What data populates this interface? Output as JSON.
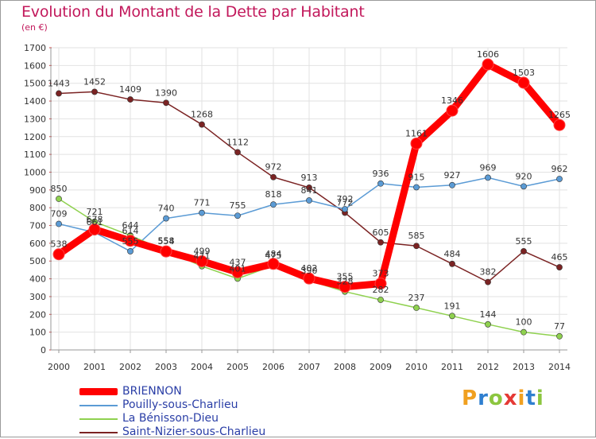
{
  "title": "Evolution du Montant de la Dette par Habitant",
  "subtitle": "(en €)",
  "brand": {
    "text": "Proxiti",
    "letter_colors": [
      "#f0a020",
      "#2e7fd0",
      "#8cc63f",
      "#e53935",
      "#f0a020",
      "#2e7fd0",
      "#8cc63f"
    ]
  },
  "chart_data": {
    "type": "line",
    "x": [
      "2000",
      "2001",
      "2002",
      "2003",
      "2004",
      "2005",
      "2006",
      "2007",
      "2008",
      "2009",
      "2010",
      "2011",
      "2012",
      "2013",
      "2014"
    ],
    "ylim": [
      0,
      1700
    ],
    "yticks": [
      0,
      100,
      200,
      300,
      400,
      500,
      600,
      700,
      800,
      900,
      1000,
      1100,
      1200,
      1300,
      1400,
      1500,
      1600,
      1700
    ],
    "grid": true,
    "legend_position": "bottom-left",
    "series": [
      {
        "name": "Saint-Nizier-sous-Charlieu",
        "color": "#7b2323",
        "values": [
          1443,
          1452,
          1409,
          1390,
          1268,
          1112,
          972,
          913,
          772,
          605,
          585,
          484,
          382,
          555,
          465
        ]
      },
      {
        "name": "Pouilly-sous-Charlieu",
        "color": "#5b9bd5",
        "values": [
          709,
          661,
          555,
          740,
          771,
          755,
          818,
          841,
          792,
          936,
          915,
          927,
          969,
          920,
          962
        ]
      },
      {
        "name": "La Bénisson-Dieu",
        "color": "#8fd14f",
        "values": [
          850,
          721,
          644,
          558,
          471,
          401,
          475,
          390,
          328,
          282,
          237,
          191,
          144,
          100,
          77
        ]
      },
      {
        "name": "BRIENNON",
        "color": "#ff0000",
        "values": [
          538,
          678,
          614,
          554,
          499,
          437,
          484,
          402,
          355,
          373,
          1161,
          1346,
          1606,
          1503,
          1265
        ]
      }
    ]
  },
  "legend": [
    {
      "label": "BRIENNON",
      "color": "#ff0000",
      "thickness": 9
    },
    {
      "label": "Pouilly-sous-Charlieu",
      "color": "#5b9bd5",
      "thickness": 2
    },
    {
      "label": "La Bénisson-Dieu",
      "color": "#8fd14f",
      "thickness": 2
    },
    {
      "label": "Saint-Nizier-sous-Charlieu",
      "color": "#7b2323",
      "thickness": 2
    }
  ]
}
